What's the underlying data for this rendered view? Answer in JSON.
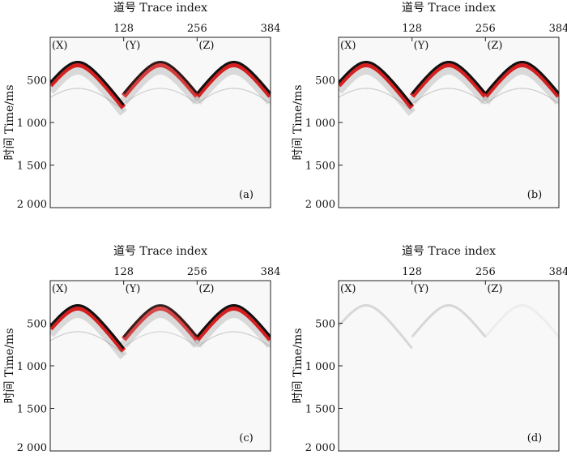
{
  "figure": {
    "colors": {
      "wave_black": "#111111",
      "wave_red": "#d42020",
      "wave_gray": "#7a7a7a",
      "frame": "#222222",
      "panel_bg": "#f8f8f8"
    }
  },
  "chart_data": [
    {
      "type": "heatmap",
      "panel": "(a)",
      "xlabel": "道号 Trace index",
      "ylabel": "时间 Time/ms",
      "x_ticks": [
        "128",
        "256",
        "384"
      ],
      "y_ticks": [
        "500",
        "1 000",
        "1 500",
        "2 000"
      ],
      "xlim": [
        0,
        384
      ],
      "ylim": [
        0,
        2000
      ],
      "groups": [
        "(X)",
        "(Y)",
        "(Z)"
      ],
      "component_strength": [
        1.0,
        0.85,
        1.0
      ]
    },
    {
      "type": "heatmap",
      "panel": "(b)",
      "xlabel": "道号 Trace index",
      "ylabel": "时间 Time/ms",
      "x_ticks": [
        "128",
        "256",
        "384"
      ],
      "y_ticks": [
        "500",
        "1 000",
        "1 500",
        "2 000"
      ],
      "xlim": [
        0,
        384
      ],
      "ylim": [
        0,
        2000
      ],
      "groups": [
        "(X)",
        "(Y)",
        "(Z)"
      ],
      "component_strength": [
        1.0,
        1.0,
        1.0
      ]
    },
    {
      "type": "heatmap",
      "panel": "(c)",
      "xlabel": "道号 Trace index",
      "ylabel": "时间 Time/ms",
      "x_ticks": [
        "128",
        "256",
        "384"
      ],
      "y_ticks": [
        "500",
        "1 000",
        "1 500",
        "2 000"
      ],
      "xlim": [
        0,
        384
      ],
      "ylim": [
        0,
        2000
      ],
      "groups": [
        "(X)",
        "(Y)",
        "(Z)"
      ],
      "component_strength": [
        1.0,
        0.8,
        1.0
      ]
    },
    {
      "type": "heatmap",
      "panel": "(d)",
      "xlabel": "道号 Trace index",
      "ylabel": "时间 Time/ms",
      "x_ticks": [
        "128",
        "256",
        "384"
      ],
      "y_ticks": [
        "500",
        "1 000",
        "1 500",
        "2 000"
      ],
      "xlim": [
        0,
        384
      ],
      "ylim": [
        0,
        2000
      ],
      "groups": [
        "(X)",
        "(Y)",
        "(Z)"
      ],
      "component_strength": [
        0.12,
        0.12,
        0.04
      ]
    }
  ]
}
